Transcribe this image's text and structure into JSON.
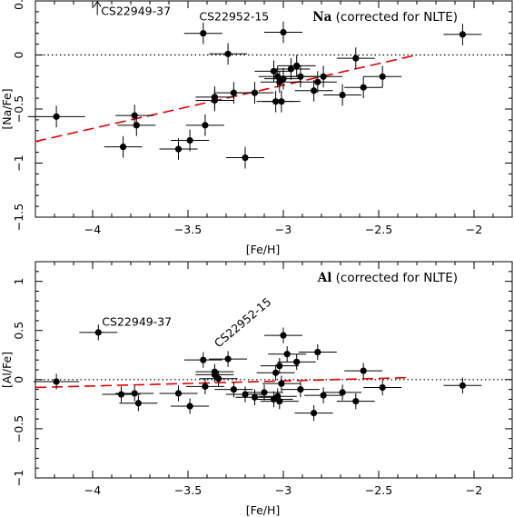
{
  "chart_data": [
    {
      "type": "scatter",
      "title_element": "Na",
      "title_note": " (corrected for NLTE)",
      "xlabel": "[Fe/H]",
      "ylabel": "[Na/Fe]",
      "xlim": [
        -4.3,
        -1.8
      ],
      "ylim": [
        -1.5,
        0.5
      ],
      "xticks": [
        -4,
        -3.5,
        -3,
        -2.5,
        -2
      ],
      "yticks": [
        -1.5,
        -1,
        -0.5,
        0,
        0.5
      ],
      "reference_line_y": 0,
      "fit_line": {
        "color": "#e00000",
        "x": [
          -4.3,
          -2.3
        ],
        "y": [
          -0.8,
          0.0
        ]
      },
      "points": [
        {
          "x": -4.19,
          "y": -0.57,
          "xerr": 0.15,
          "yerr": 0.1
        },
        {
          "x": -3.84,
          "y": -0.85,
          "xerr": 0.1,
          "yerr": 0.1
        },
        {
          "x": -3.78,
          "y": -0.56,
          "xerr": 0.1,
          "yerr": 0.1
        },
        {
          "x": -3.77,
          "y": -0.65,
          "xerr": 0.1,
          "yerr": 0.1
        },
        {
          "x": -3.55,
          "y": -0.87,
          "xerr": 0.1,
          "yerr": 0.1
        },
        {
          "x": -3.49,
          "y": -0.79,
          "xerr": 0.1,
          "yerr": 0.1
        },
        {
          "x": -3.42,
          "y": 0.2,
          "xerr": 0.1,
          "yerr": 0.1
        },
        {
          "x": -3.41,
          "y": -0.65,
          "xerr": 0.1,
          "yerr": 0.1
        },
        {
          "x": -3.36,
          "y": -0.42,
          "xerr": 0.1,
          "yerr": 0.1
        },
        {
          "x": -3.36,
          "y": -0.39,
          "xerr": 0.1,
          "yerr": 0.1
        },
        {
          "x": -3.29,
          "y": 0.01,
          "xerr": 0.1,
          "yerr": 0.1
        },
        {
          "x": -3.26,
          "y": -0.35,
          "xerr": 0.1,
          "yerr": 0.1
        },
        {
          "x": -3.2,
          "y": -0.95,
          "xerr": 0.1,
          "yerr": 0.1
        },
        {
          "x": -3.15,
          "y": -0.35,
          "xerr": 0.1,
          "yerr": 0.1
        },
        {
          "x": -3.05,
          "y": -0.15,
          "xerr": 0.1,
          "yerr": 0.1
        },
        {
          "x": -3.04,
          "y": -0.43,
          "xerr": 0.1,
          "yerr": 0.1
        },
        {
          "x": -3.03,
          "y": -0.2,
          "xerr": 0.1,
          "yerr": 0.1
        },
        {
          "x": -3.02,
          "y": -0.25,
          "xerr": 0.1,
          "yerr": 0.1
        },
        {
          "x": -3.01,
          "y": -0.43,
          "xerr": 0.1,
          "yerr": 0.1
        },
        {
          "x": -3.0,
          "y": -0.22,
          "xerr": 0.1,
          "yerr": 0.1
        },
        {
          "x": -3.0,
          "y": 0.21,
          "xerr": 0.1,
          "yerr": 0.1
        },
        {
          "x": -2.96,
          "y": -0.13,
          "xerr": 0.1,
          "yerr": 0.1
        },
        {
          "x": -2.93,
          "y": -0.1,
          "xerr": 0.1,
          "yerr": 0.1
        },
        {
          "x": -2.91,
          "y": -0.2,
          "xerr": 0.1,
          "yerr": 0.1
        },
        {
          "x": -2.84,
          "y": -0.33,
          "xerr": 0.1,
          "yerr": 0.1
        },
        {
          "x": -2.82,
          "y": -0.25,
          "xerr": 0.1,
          "yerr": 0.1
        },
        {
          "x": -2.79,
          "y": -0.2,
          "xerr": 0.1,
          "yerr": 0.1
        },
        {
          "x": -2.69,
          "y": -0.37,
          "xerr": 0.1,
          "yerr": 0.1
        },
        {
          "x": -2.62,
          "y": -0.03,
          "xerr": 0.1,
          "yerr": 0.1
        },
        {
          "x": -2.58,
          "y": -0.3,
          "xerr": 0.1,
          "yerr": 0.1
        },
        {
          "x": -2.48,
          "y": -0.2,
          "xerr": 0.1,
          "yerr": 0.1
        },
        {
          "x": -2.06,
          "y": 0.19,
          "xerr": 0.1,
          "yerr": 0.1
        }
      ],
      "annotations": [
        {
          "text": "CS22949-37",
          "x": -3.98,
          "y": 0.52,
          "arrow": "up"
        },
        {
          "text": "CS22952-15",
          "x": -3.46,
          "y": 0.32
        }
      ]
    },
    {
      "type": "scatter",
      "title_element": "Al",
      "title_note": " (corrected for NLTE)",
      "xlabel": "[Fe/H]",
      "ylabel": "[Al/Fe]",
      "xlim": [
        -4.3,
        -1.8
      ],
      "ylim": [
        -1.0,
        1.2
      ],
      "xticks": [
        -4,
        -3.5,
        -3,
        -2.5,
        -2
      ],
      "yticks": [
        -1,
        -0.5,
        0,
        0.5,
        1
      ],
      "reference_line_y": 0,
      "fit_line": {
        "color": "#e00000",
        "x": [
          -4.3,
          -2.35
        ],
        "y": [
          -0.08,
          0.02
        ]
      },
      "points": [
        {
          "x": -4.19,
          "y": -0.02,
          "xerr": 0.12,
          "yerr": 0.08
        },
        {
          "x": -3.97,
          "y": 0.48,
          "xerr": 0.1,
          "yerr": 0.08
        },
        {
          "x": -3.85,
          "y": -0.15,
          "xerr": 0.1,
          "yerr": 0.08
        },
        {
          "x": -3.78,
          "y": -0.14,
          "xerr": 0.1,
          "yerr": 0.08
        },
        {
          "x": -3.76,
          "y": -0.24,
          "xerr": 0.1,
          "yerr": 0.08
        },
        {
          "x": -3.55,
          "y": -0.14,
          "xerr": 0.1,
          "yerr": 0.08
        },
        {
          "x": -3.49,
          "y": -0.27,
          "xerr": 0.1,
          "yerr": 0.08
        },
        {
          "x": -3.42,
          "y": 0.2,
          "xerr": 0.1,
          "yerr": 0.08
        },
        {
          "x": -3.41,
          "y": -0.07,
          "xerr": 0.1,
          "yerr": 0.08
        },
        {
          "x": -3.36,
          "y": 0.08,
          "xerr": 0.1,
          "yerr": 0.08
        },
        {
          "x": -3.36,
          "y": 0.05,
          "xerr": 0.1,
          "yerr": 0.08
        },
        {
          "x": -3.34,
          "y": 0.01,
          "xerr": 0.1,
          "yerr": 0.08
        },
        {
          "x": -3.29,
          "y": 0.21,
          "xerr": 0.1,
          "yerr": 0.08
        },
        {
          "x": -3.26,
          "y": -0.1,
          "xerr": 0.1,
          "yerr": 0.08
        },
        {
          "x": -3.2,
          "y": -0.15,
          "xerr": 0.1,
          "yerr": 0.08
        },
        {
          "x": -3.15,
          "y": -0.18,
          "xerr": 0.1,
          "yerr": 0.08
        },
        {
          "x": -3.1,
          "y": -0.13,
          "xerr": 0.1,
          "yerr": 0.08
        },
        {
          "x": -3.05,
          "y": -0.2,
          "xerr": 0.1,
          "yerr": 0.08
        },
        {
          "x": -3.04,
          "y": 0.07,
          "xerr": 0.1,
          "yerr": 0.08
        },
        {
          "x": -3.02,
          "y": 0.14,
          "xerr": 0.1,
          "yerr": 0.08
        },
        {
          "x": -3.03,
          "y": -0.17,
          "xerr": 0.1,
          "yerr": 0.08
        },
        {
          "x": -3.02,
          "y": -0.22,
          "xerr": 0.1,
          "yerr": 0.08
        },
        {
          "x": -3.01,
          "y": -0.04,
          "xerr": 0.1,
          "yerr": 0.08
        },
        {
          "x": -3.0,
          "y": 0.45,
          "xerr": 0.1,
          "yerr": 0.08
        },
        {
          "x": -2.98,
          "y": 0.26,
          "xerr": 0.1,
          "yerr": 0.08
        },
        {
          "x": -2.93,
          "y": 0.18,
          "xerr": 0.1,
          "yerr": 0.08
        },
        {
          "x": -2.91,
          "y": -0.1,
          "xerr": 0.1,
          "yerr": 0.08
        },
        {
          "x": -2.84,
          "y": -0.34,
          "xerr": 0.1,
          "yerr": 0.08
        },
        {
          "x": -2.82,
          "y": 0.28,
          "xerr": 0.1,
          "yerr": 0.08
        },
        {
          "x": -2.79,
          "y": -0.16,
          "xerr": 0.1,
          "yerr": 0.08
        },
        {
          "x": -2.69,
          "y": -0.13,
          "xerr": 0.1,
          "yerr": 0.08
        },
        {
          "x": -2.62,
          "y": -0.22,
          "xerr": 0.1,
          "yerr": 0.08
        },
        {
          "x": -2.58,
          "y": 0.09,
          "xerr": 0.1,
          "yerr": 0.08
        },
        {
          "x": -2.48,
          "y": -0.08,
          "xerr": 0.1,
          "yerr": 0.08
        },
        {
          "x": -2.06,
          "y": -0.06,
          "xerr": 0.1,
          "yerr": 0.08
        }
      ],
      "annotations": [
        {
          "text": "CS22949-37",
          "x": -3.97,
          "y": 0.55
        },
        {
          "text": "CS22952-15",
          "x": -3.2,
          "y": 0.55,
          "rotate": -40
        }
      ]
    }
  ]
}
